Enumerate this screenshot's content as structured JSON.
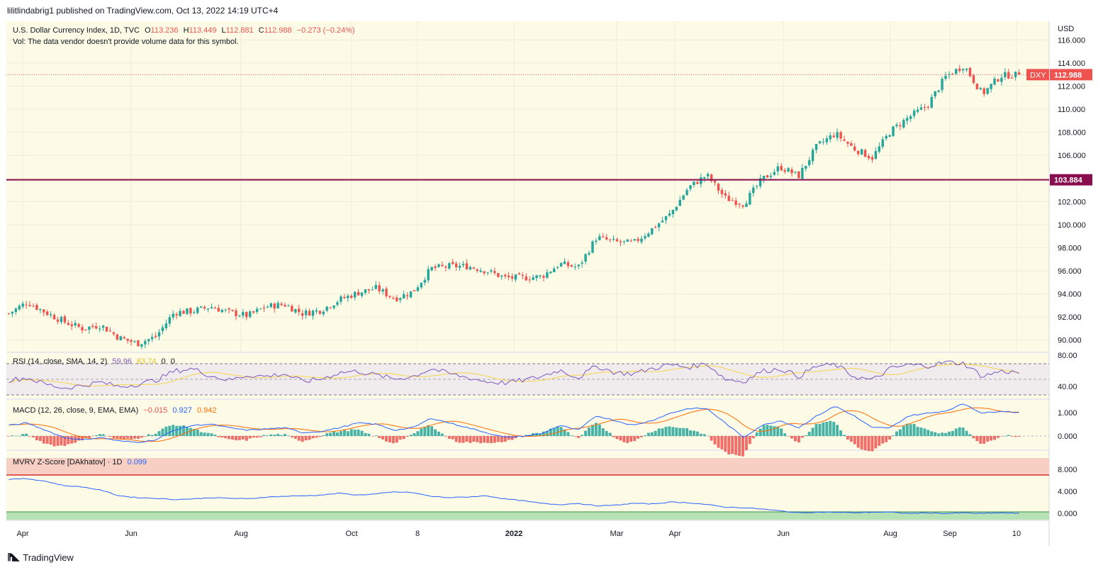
{
  "header": {
    "published_text": "lilitlindabrig1 published on TradingView.com, Oct 13, 2022 14:19 UTC+4"
  },
  "footer": {
    "brand": "TradingView"
  },
  "main": {
    "title": "U.S. Dollar Currency Index, 1D, TVC",
    "ohlc": {
      "o_label": "O",
      "o": "113.236",
      "h_label": "H",
      "h": "113.449",
      "l_label": "L",
      "l": "112.881",
      "c_label": "C",
      "c": "112.988",
      "change": "−0.273 (−0.24%)"
    },
    "vol_text": "Vol: The data vendor doesn't provide volume data for this symbol.",
    "currency": "USD",
    "symbol_badge": "DXY",
    "last_price": "112.988",
    "level_price": "103.884",
    "price_ticks": [
      "116.000",
      "114.000",
      "112.000",
      "110.000",
      "108.000",
      "106.000",
      "104.000",
      "102.000",
      "100.000",
      "98.000",
      "96.000",
      "94.000",
      "92.000",
      "90.000"
    ]
  },
  "rsi": {
    "label": "RSI (14, close, SMA, 14, 2)",
    "v1": "59.96",
    "v2": "63.74",
    "v3": "0",
    "v4": "0",
    "ticks": [
      "80.00",
      "40.00"
    ]
  },
  "macd": {
    "label": "MACD (12, 26, close, 9, EMA, EMA)",
    "hist": "−0.015",
    "macd": "0.927",
    "signal": "0.942",
    "ticks": [
      "1.000",
      "0.000"
    ]
  },
  "mvrv": {
    "label": "MVRV Z-Score [DAkhatov] · 1D",
    "value": "0.099",
    "ticks": [
      "8.000",
      "4.000",
      "0.000"
    ]
  },
  "time_axis": [
    "Apr",
    "Jun",
    "Aug",
    "Oct",
    "8",
    "2022",
    "Mar",
    "Apr",
    "Jun",
    "Aug",
    "Sep",
    "10"
  ],
  "colors": {
    "up": "#26a69a",
    "down": "#ef5350",
    "level": "#880e4f",
    "rsi": "#7e57c2",
    "macd": "#2962ff",
    "signal": "#ff6d00",
    "mvrv": "#2962ff",
    "bg": "#fdfbe6"
  },
  "chart_data": {
    "type": "candlestick",
    "title": "U.S. Dollar Currency Index, 1D, TVC",
    "ylim": [
      89,
      117
    ],
    "horizontal_line": 103.884,
    "x_labels": [
      "Apr",
      "Jun",
      "Aug",
      "Oct",
      "8",
      "2022",
      "Mar",
      "Apr",
      "Jun",
      "Aug",
      "Sep",
      "10"
    ],
    "close_path": [
      92.3,
      93.3,
      92.4,
      91.6,
      91.0,
      91.3,
      90.2,
      89.7,
      90.3,
      92.4,
      92.5,
      92.9,
      92.4,
      92.1,
      92.9,
      93.1,
      92.3,
      92.6,
      93.5,
      94.1,
      94.5,
      93.6,
      94.2,
      96.2,
      96.4,
      96.4,
      96.0,
      95.4,
      95.4,
      95.5,
      96.6,
      96.3,
      98.9,
      98.5,
      98.4,
      99.6,
      100.9,
      103.2,
      104.3,
      102.3,
      101.8,
      103.9,
      105.0,
      104.2,
      106.8,
      107.9,
      106.6,
      105.8,
      108.1,
      109.3,
      110.3,
      112.8,
      113.8,
      111.3,
      112.9,
      112.99
    ],
    "rsi_range": [
      20,
      90
    ],
    "rsi_path": [
      48,
      52,
      42,
      36,
      40,
      45,
      38,
      42,
      48,
      62,
      66,
      55,
      48,
      56,
      54,
      58,
      46,
      50,
      60,
      62,
      56,
      50,
      54,
      66,
      58,
      52,
      46,
      44,
      48,
      54,
      64,
      52,
      70,
      60,
      58,
      66,
      72,
      68,
      74,
      50,
      46,
      62,
      66,
      54,
      70,
      72,
      54,
      48,
      66,
      72,
      70,
      76,
      74,
      54,
      62,
      60
    ],
    "macd_range": [
      -0.6,
      1.4
    ],
    "macd_path": [
      0.4,
      0.5,
      0.2,
      -0.1,
      -0.2,
      -0.1,
      -0.25,
      -0.3,
      -0.2,
      0.2,
      0.4,
      0.45,
      0.3,
      0.2,
      0.25,
      0.3,
      0.1,
      0.15,
      0.3,
      0.5,
      0.45,
      0.2,
      0.3,
      0.7,
      0.5,
      0.3,
      0.1,
      -0.1,
      -0.05,
      0.05,
      0.4,
      0.2,
      0.8,
      0.6,
      0.4,
      0.6,
      0.9,
      1.1,
      1.1,
      0.5,
      -0.1,
      0.4,
      0.6,
      0.3,
      0.8,
      1.2,
      0.8,
      0.3,
      0.3,
      0.8,
      0.9,
      1.0,
      1.3,
      0.9,
      1.0,
      0.93
    ],
    "mvrv_range": [
      -1,
      10
    ],
    "mvrv_path": [
      5.5,
      5.6,
      5.2,
      4.5,
      4.3,
      3.8,
      2.9,
      2.6,
      2.5,
      2.3,
      2.4,
      2.6,
      2.5,
      2.4,
      2.7,
      2.8,
      2.9,
      3.0,
      3.3,
      3.0,
      3.2,
      3.5,
      3.4,
      2.8,
      2.6,
      2.7,
      2.9,
      2.4,
      2.1,
      1.7,
      1.5,
      1.7,
      1.3,
      1.4,
      1.7,
      1.6,
      1.9,
      1.8,
      1.5,
      1.1,
      1.0,
      0.8,
      0.5,
      0.2,
      0.3,
      0.3,
      0.2,
      0.3,
      0.3,
      0.1,
      0.2,
      0.1,
      0.2,
      0.1,
      0.2,
      0.1
    ]
  }
}
